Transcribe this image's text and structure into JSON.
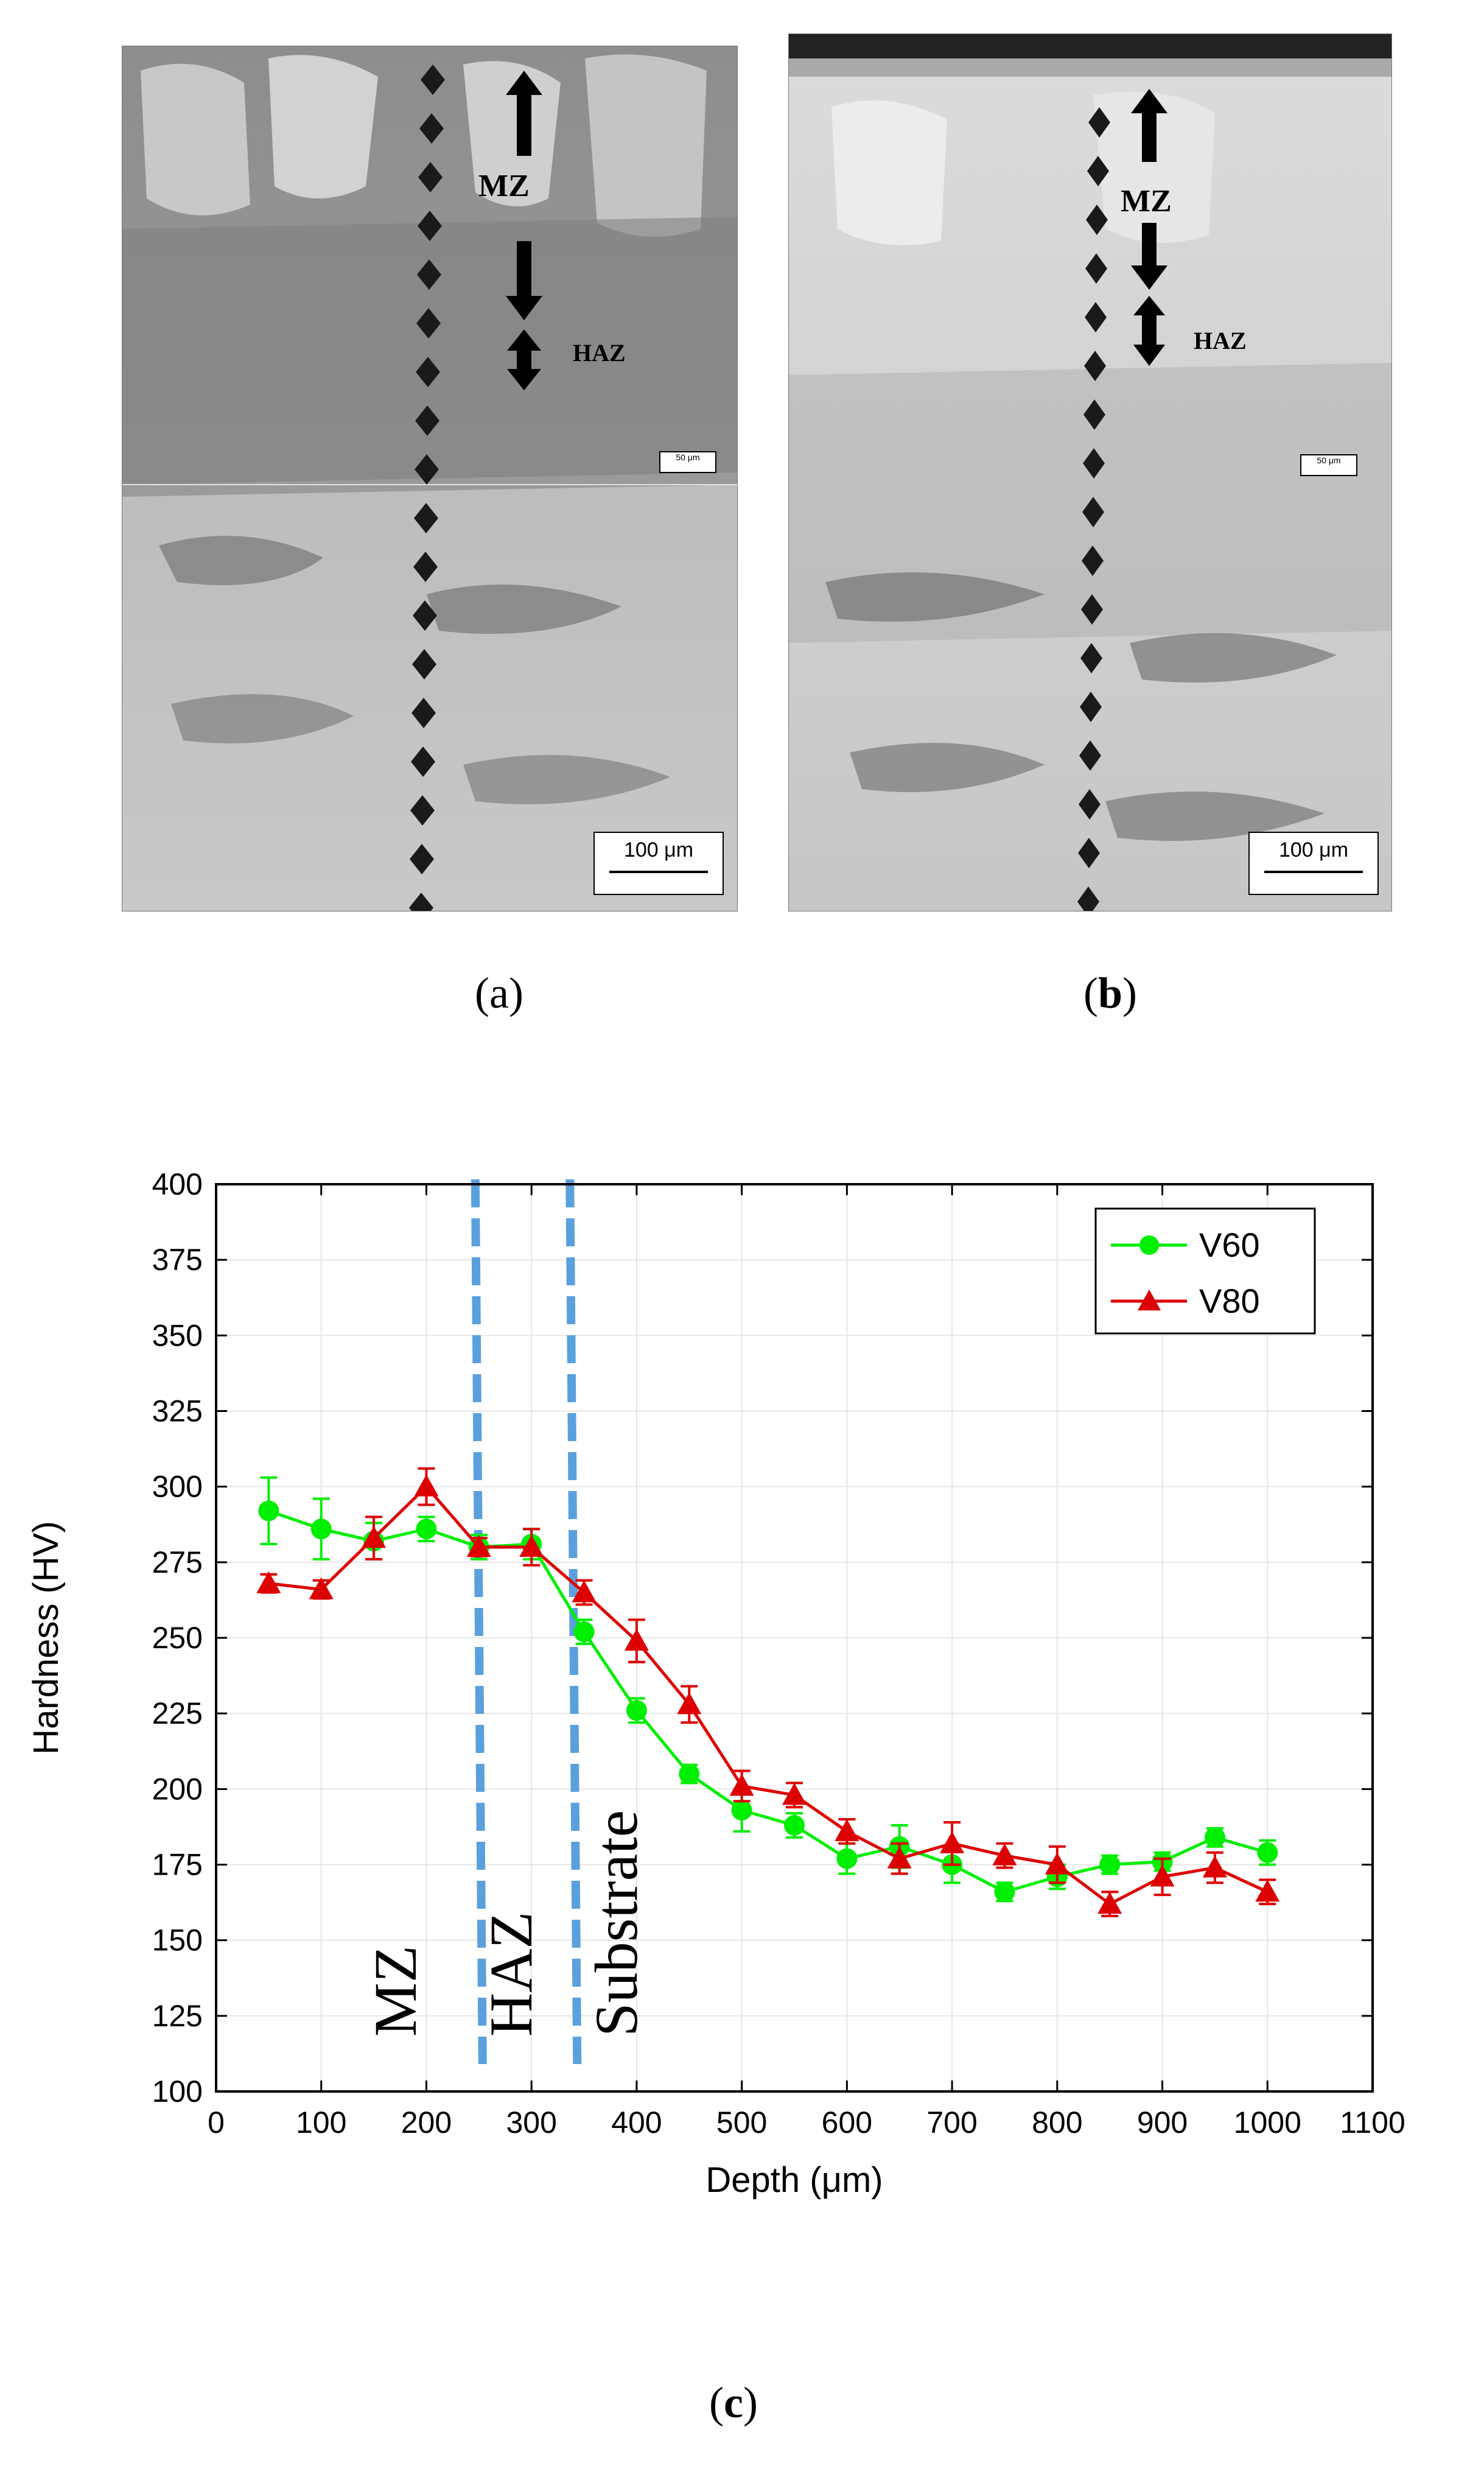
{
  "panels": {
    "a": {
      "caption_open": "(",
      "caption_letter": "a",
      "caption_close": ")",
      "mz_label": "MZ",
      "haz_label": "HAZ",
      "scale_large": "100 μm",
      "scale_small": "50 μm"
    },
    "b": {
      "caption_open": "(",
      "caption_letter": "b",
      "caption_close": ")",
      "mz_label": "MZ",
      "haz_label": "HAZ",
      "scale_large": "100 μm",
      "scale_small": "50 μm"
    },
    "c": {
      "caption_open": "(",
      "caption_letter": "c",
      "caption_close": ")"
    }
  },
  "colors": {
    "v60": "#00ee00",
    "v80": "#dd0000",
    "boundary": "#5aa0dc"
  },
  "chart_data": {
    "type": "line",
    "xlabel": "Depth (μm)",
    "ylabel": "Hardness (HV)",
    "xlim": [
      0,
      1100
    ],
    "ylim": [
      100,
      400
    ],
    "xticks": [
      0,
      100,
      200,
      300,
      400,
      500,
      600,
      700,
      800,
      900,
      1000,
      1100
    ],
    "yticks": [
      100,
      125,
      150,
      175,
      200,
      225,
      250,
      275,
      300,
      325,
      350,
      375,
      400
    ],
    "legend_position": "top-right",
    "x": [
      50,
      100,
      150,
      200,
      250,
      300,
      350,
      400,
      450,
      500,
      550,
      600,
      650,
      700,
      750,
      800,
      850,
      900,
      950,
      1000
    ],
    "series": [
      {
        "name": "V60",
        "marker": "circle",
        "values": [
          292,
          286,
          282,
          286,
          280,
          281,
          252,
          226,
          205,
          193,
          188,
          177,
          181,
          175,
          166,
          171,
          175,
          176,
          184,
          179
        ],
        "errors": [
          11,
          10,
          6,
          4,
          4,
          5,
          4,
          4,
          3,
          7,
          4,
          5,
          7,
          6,
          3,
          4,
          3,
          3,
          3,
          4
        ]
      },
      {
        "name": "V80",
        "marker": "triangle",
        "values": [
          268,
          266,
          283,
          300,
          280,
          280,
          265,
          249,
          228,
          201,
          198,
          186,
          177,
          182,
          178,
          175,
          162,
          171,
          174,
          166
        ],
        "errors": [
          3,
          3,
          7,
          6,
          3,
          6,
          4,
          7,
          6,
          5,
          4,
          4,
          5,
          7,
          4,
          6,
          4,
          6,
          5,
          4
        ]
      }
    ],
    "vlines": [
      250,
      340
    ],
    "zone_labels": [
      "MZ",
      "HAZ",
      "Substrate"
    ]
  }
}
